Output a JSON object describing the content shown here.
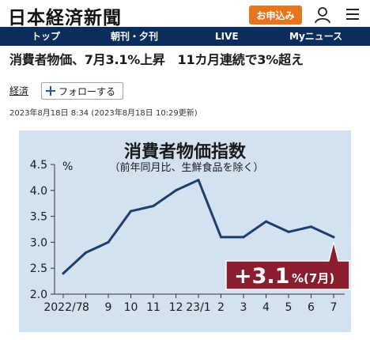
{
  "header": {
    "logo": "日本経済新聞",
    "apply_label": "お申込み",
    "user_icon": "user-icon",
    "menu_icon": "menu-icon"
  },
  "nav": {
    "items": [
      "トップ",
      "朝刊・夕刊",
      "LIVE",
      "Myニュース"
    ]
  },
  "article": {
    "headline": "消費者物価、7月3.1%上昇　11カ月連続で3%超え",
    "category": "経済",
    "follow_label": "フォローする",
    "timestamp": "2023年8月18日 8:34 (2023年8月18日 10:29更新)"
  },
  "colors": {
    "accent_orange": "#e8741f",
    "nav_bg": "#0b2c5c",
    "chart_bg": "#d3e1f0",
    "line": "#1c3f6b",
    "callout": "#8a1d2e"
  },
  "chart_data": {
    "type": "line",
    "title": "消費者物価指数",
    "subtitle": "（前年同月比、生鮮食品を除く）",
    "ylabel": "%",
    "xlabel": "",
    "ylim": [
      2.0,
      4.5
    ],
    "yticks": [
      "4.5",
      "4.0",
      "3.5",
      "3.0",
      "2.5",
      "2.0"
    ],
    "categories": [
      "2022/7",
      "8",
      "9",
      "10",
      "11",
      "12",
      "23/1",
      "2",
      "3",
      "4",
      "5",
      "6",
      "7"
    ],
    "values": [
      2.4,
      2.8,
      3.0,
      3.6,
      3.7,
      4.0,
      4.2,
      3.1,
      3.1,
      3.4,
      3.2,
      3.3,
      3.1
    ],
    "grid": false,
    "callout": {
      "value_text": "+3.1",
      "unit_text": "%(7月)"
    }
  }
}
